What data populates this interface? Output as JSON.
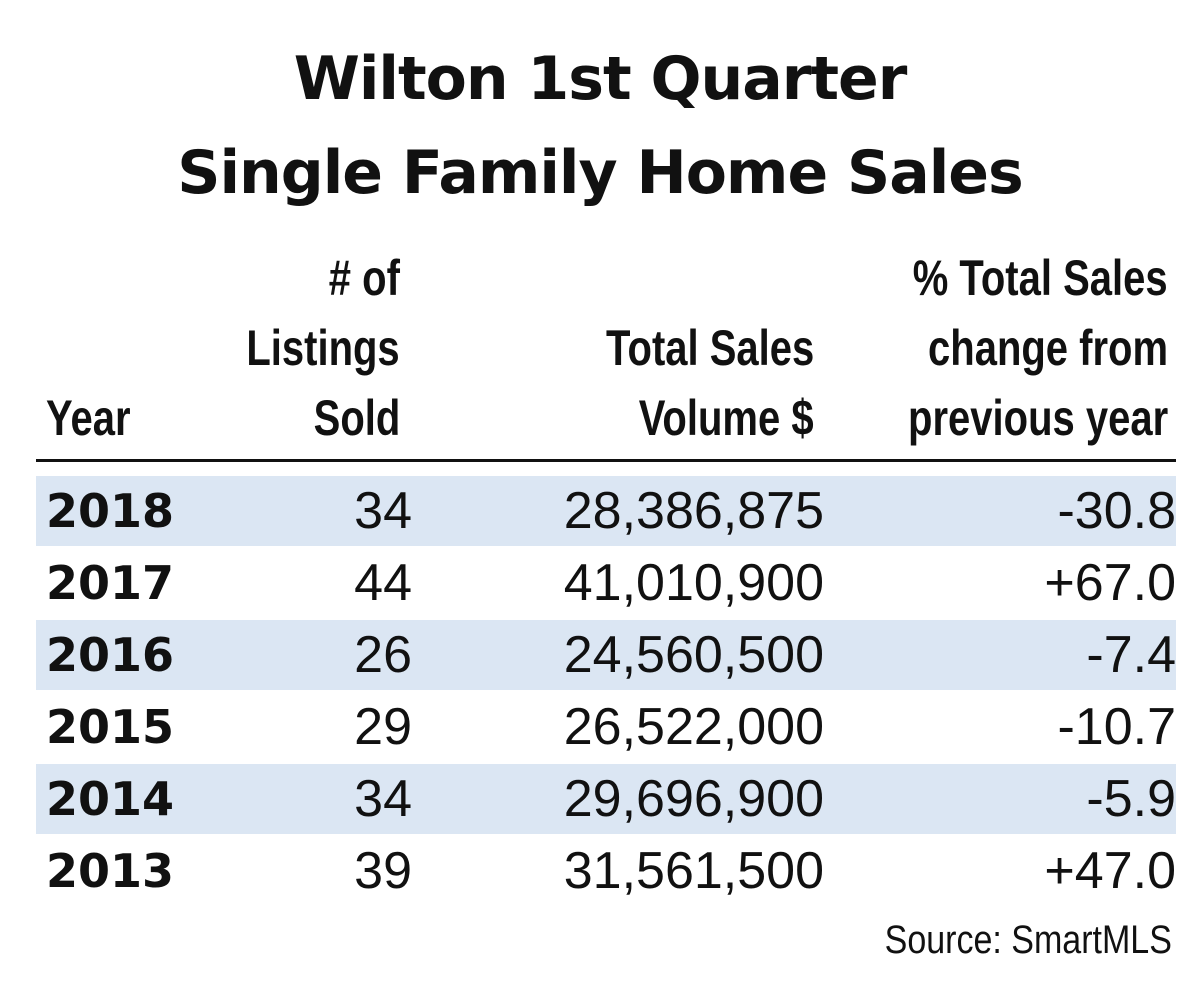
{
  "title_lines": [
    "Wilton 1st Quarter",
    "Single Family Home Sales"
  ],
  "headers": {
    "year": "Year",
    "listings": [
      "# of",
      "Listings",
      "Sold"
    ],
    "volume": [
      "Total Sales",
      "Volume $"
    ],
    "change": [
      "% Total Sales",
      "change from",
      "previous year"
    ]
  },
  "rows": [
    {
      "year": "2018",
      "listings": "34",
      "volume": "28,386,875",
      "change": "-30.8"
    },
    {
      "year": "2017",
      "listings": "44",
      "volume": "41,010,900",
      "change": "+67.0"
    },
    {
      "year": "2016",
      "listings": "26",
      "volume": "24,560,500",
      "change": "-7.4"
    },
    {
      "year": "2015",
      "listings": "29",
      "volume": "26,522,000",
      "change": "-10.7"
    },
    {
      "year": "2014",
      "listings": "34",
      "volume": "29,696,900",
      "change": "-5.9"
    },
    {
      "year": "2013",
      "listings": "39",
      "volume": "31,561,500",
      "change": "+47.0"
    }
  ],
  "source": "Source: SmartMLS",
  "colors": {
    "row_shade": "#dbe6f3",
    "text": "#111111"
  },
  "chart_data": {
    "type": "table",
    "title": "Wilton 1st Quarter Single Family Home Sales",
    "columns": [
      "Year",
      "# of Listings Sold",
      "Total Sales Volume $",
      "% Total Sales change from previous year"
    ],
    "rows": [
      [
        2018,
        34,
        28386875,
        -30.8
      ],
      [
        2017,
        44,
        41010900,
        67.0
      ],
      [
        2016,
        26,
        24560500,
        -7.4
      ],
      [
        2015,
        29,
        26522000,
        -10.7
      ],
      [
        2014,
        34,
        29696900,
        -5.9
      ],
      [
        2013,
        39,
        31561500,
        47.0
      ]
    ],
    "source": "Source: SmartMLS"
  }
}
